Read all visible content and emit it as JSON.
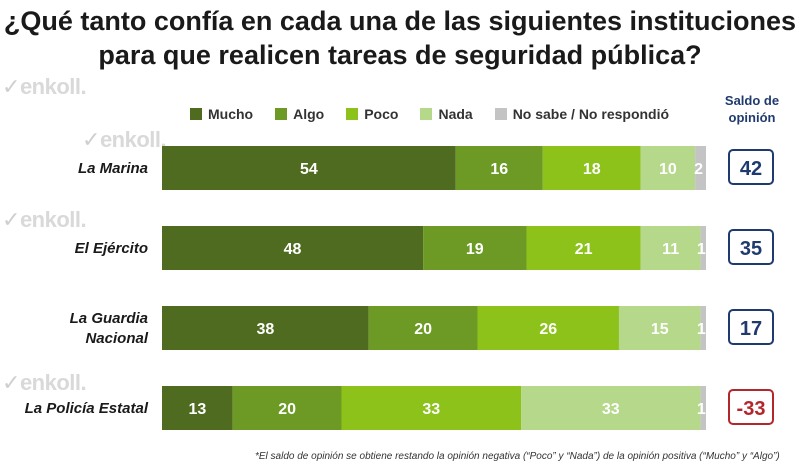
{
  "title": {
    "line1": "¿Qué tanto confía en cada una de las siguientes instituciones",
    "line2": "para que realicen tareas de seguridad pública?"
  },
  "watermark_text": "enkoll.",
  "saldo_header": {
    "line1": "Saldo de",
    "line2": "opinión"
  },
  "legend": [
    {
      "label": "Mucho",
      "color": "#4e6b1f"
    },
    {
      "label": "Algo",
      "color": "#6c9a24"
    },
    {
      "label": "Poco",
      "color": "#8cc21a"
    },
    {
      "label": "Nada",
      "color": "#b5d88a"
    },
    {
      "label": "No sabe / No respondió",
      "color": "#c4c4c4"
    }
  ],
  "footnote": "*El saldo de opinión se obtiene restando la opinión negativa (“Poco” y “Nada”) de la opinión positiva (“Mucho” y “Algo”)",
  "chart_data": {
    "type": "bar",
    "orientation": "horizontal",
    "stacked": true,
    "title": "¿Qué tanto confía en cada una de las siguientes instituciones para que realicen tareas de seguridad pública?",
    "categories": [
      [
        "La Marina"
      ],
      [
        "El Ejército"
      ],
      [
        "La Guardia",
        "Nacional"
      ],
      [
        "La Policía Estatal"
      ]
    ],
    "series": [
      {
        "name": "Mucho",
        "color": "#4e6b1f",
        "values": [
          54,
          48,
          38,
          13
        ]
      },
      {
        "name": "Algo",
        "color": "#6c9a24",
        "values": [
          16,
          19,
          20,
          20
        ]
      },
      {
        "name": "Poco",
        "color": "#8cc21a",
        "values": [
          18,
          21,
          26,
          33
        ]
      },
      {
        "name": "Nada",
        "color": "#b5d88a",
        "values": [
          10,
          11,
          15,
          33
        ]
      },
      {
        "name": "No sabe / No respondió",
        "color": "#c4c4c4",
        "values": [
          2,
          1,
          1,
          1
        ]
      }
    ],
    "saldo": [
      {
        "value": "42",
        "color": "#1f3a6e"
      },
      {
        "value": "35",
        "color": "#1f3a6e"
      },
      {
        "value": "17",
        "color": "#1f3a6e"
      },
      {
        "value": "-33",
        "color": "#b3262b"
      }
    ],
    "xlim": [
      0,
      100
    ],
    "grid": false,
    "legend_position": "top"
  }
}
